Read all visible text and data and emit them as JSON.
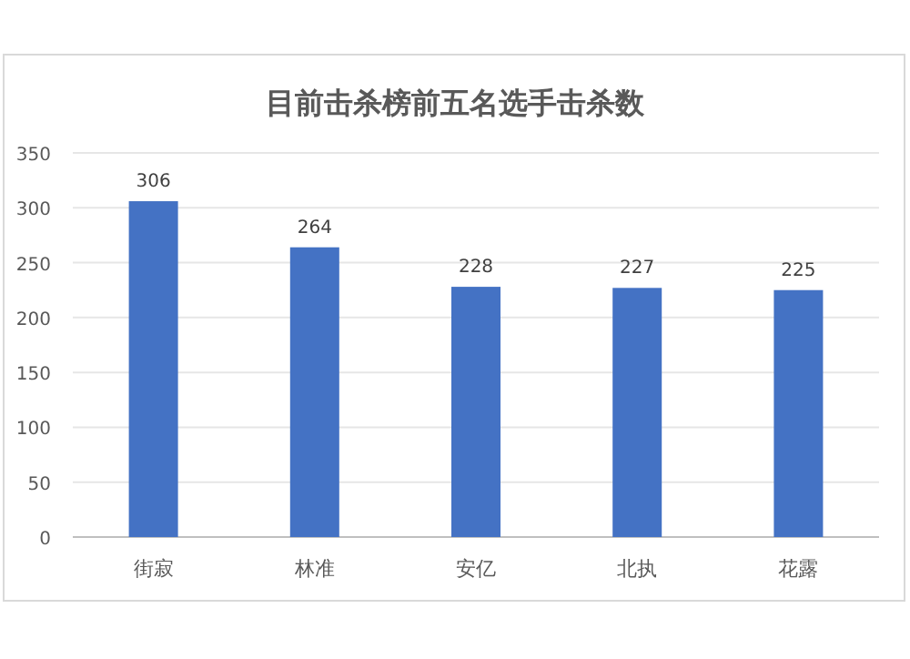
{
  "chart_data": {
    "type": "bar",
    "title": "目前击杀榜前五名选手击杀数",
    "categories": [
      "街寂",
      "林准",
      "安亿",
      "北执",
      "花露"
    ],
    "values": [
      306,
      264,
      228,
      227,
      225
    ],
    "color": "#4472c4",
    "ylim": [
      0,
      350
    ],
    "yticks": [
      0,
      50,
      100,
      150,
      200,
      250,
      300,
      350
    ],
    "grid": "y",
    "data_labels": true
  }
}
